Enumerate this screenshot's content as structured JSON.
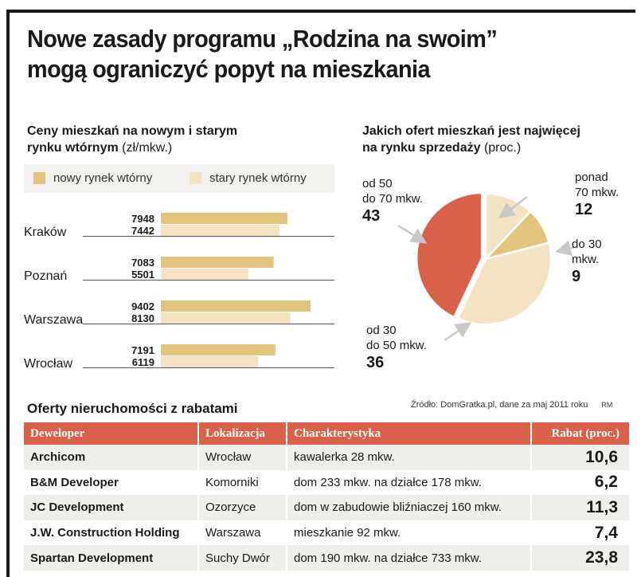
{
  "title": {
    "line1": "Nowe zasady programu „Rodzina na swoim”",
    "line2": "mogą ograniczyć popyt na mieszkania"
  },
  "chart_data": [
    {
      "type": "bar",
      "title_bold_line1": "Ceny mieszkań na nowym i starym",
      "title_bold_line2": "rynku wtórnym",
      "title_unit": "(zł/mkw.)",
      "categories": [
        "Kraków",
        "Poznań",
        "Warszawa",
        "Wrocław"
      ],
      "series": [
        {
          "name": "nowy rynek wtórny",
          "color": "#e2c47f",
          "values": [
            7948,
            7083,
            9402,
            7191
          ]
        },
        {
          "name": "stary rynek wtórny",
          "color": "#f3e3c3",
          "values": [
            7442,
            5501,
            8130,
            6119
          ]
        }
      ],
      "orientation": "horizontal",
      "xlim": [
        0,
        10500
      ],
      "legend": "top"
    },
    {
      "type": "pie",
      "title_bold_line1": "Jakich ofert mieszkań jest najwięcej",
      "title_bold_line2": "na rynku sprzedaży",
      "title_unit": "(proc.)",
      "slices": [
        {
          "label_line1": "ponad",
          "label_line2": "70 mkw.",
          "value": 12,
          "color": "#f3e3c3"
        },
        {
          "label_line1": "do 30",
          "label_line2": "mkw.",
          "value": 9,
          "color": "#e2c47f"
        },
        {
          "label_line1": "od 30",
          "label_line2": "do 50 mkw.",
          "value": 36,
          "color": "#f3e3c3"
        },
        {
          "label_line1": "od 50",
          "label_line2": "do 70 mkw.",
          "value": 43,
          "color": "#d9614a"
        }
      ]
    }
  ],
  "source": {
    "text": "Źródło: DomGratka.pl, dane za maj 2011 roku",
    "signature": "RM"
  },
  "table": {
    "title": "Oferty nieruchomości z rabatami",
    "headers": [
      "Deweloper",
      "Lokalizacja",
      "Charakterystyka",
      "Rabat (proc.)"
    ],
    "rows": [
      {
        "developer": "Archicom",
        "location": "Wrocław",
        "description": "kawalerka 28 mkw.",
        "discount": "10,6"
      },
      {
        "developer": "B&M Developer",
        "location": "Komorniki",
        "description": "dom 233 mkw. na działce 178 mkw.",
        "discount": "6,2"
      },
      {
        "developer": "JC Development",
        "location": "Ozorzyce",
        "description": "dom w zabudowie bliźniaczej 160 mkw.",
        "discount": "11,3"
      },
      {
        "developer": "J.W. Construction Holding",
        "location": "Warszawa",
        "description": "mieszkanie 92 mkw.",
        "discount": "7,4"
      },
      {
        "developer": "Spartan Development",
        "location": "Suchy Dwór",
        "description": "dom 190 mkw. na działce 733 mkw.",
        "discount": "23,8"
      }
    ]
  }
}
